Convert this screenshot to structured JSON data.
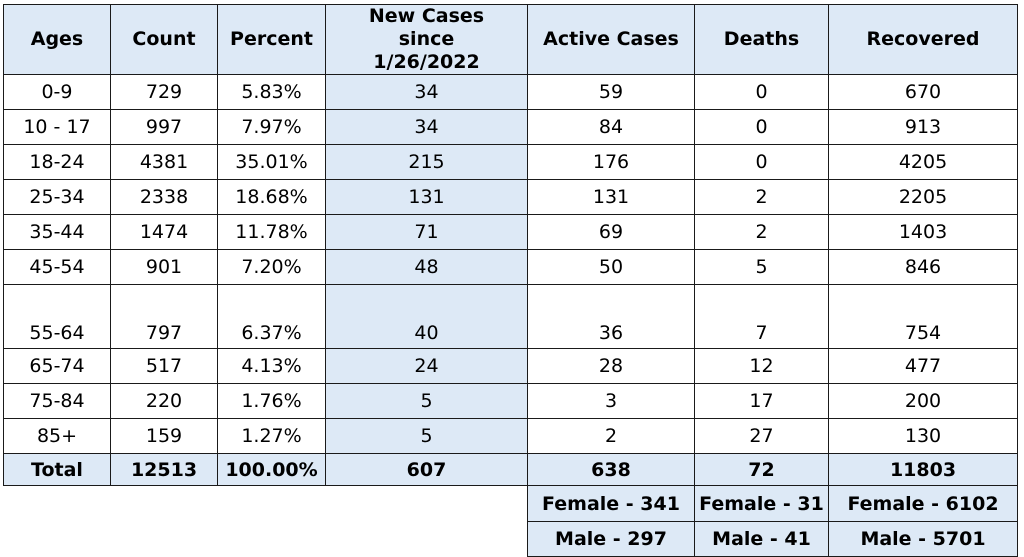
{
  "headers": [
    "Ages",
    "Count",
    "Percent",
    "New Cases since 1/26/2022",
    "Active Cases",
    "Deaths",
    "Recovered"
  ],
  "rows": [
    {
      "ages": "0-9",
      "count": "729",
      "percent": "5.83%",
      "new_cases": "34",
      "active": "59",
      "deaths": "0",
      "recovered": "670"
    },
    {
      "ages": "10 - 17",
      "count": "997",
      "percent": "7.97%",
      "new_cases": "34",
      "active": "84",
      "deaths": "0",
      "recovered": "913"
    },
    {
      "ages": "18-24",
      "count": "4381",
      "percent": "35.01%",
      "new_cases": "215",
      "active": "176",
      "deaths": "0",
      "recovered": "4205"
    },
    {
      "ages": "25-34",
      "count": "2338",
      "percent": "18.68%",
      "new_cases": "131",
      "active": "131",
      "deaths": "2",
      "recovered": "2205"
    },
    {
      "ages": "35-44",
      "count": "1474",
      "percent": "11.78%",
      "new_cases": "71",
      "active": "69",
      "deaths": "2",
      "recovered": "1403"
    },
    {
      "ages": "45-54",
      "count": "901",
      "percent": "7.20%",
      "new_cases": "48",
      "active": "50",
      "deaths": "5",
      "recovered": "846"
    },
    {
      "ages": "55-64",
      "count": "797",
      "percent": "6.37%",
      "new_cases": "40",
      "active": "36",
      "deaths": "7",
      "recovered": "754"
    },
    {
      "ages": "65-74",
      "count": "517",
      "percent": "4.13%",
      "new_cases": "24",
      "active": "28",
      "deaths": "12",
      "recovered": "477"
    },
    {
      "ages": "75-84",
      "count": "220",
      "percent": "1.76%",
      "new_cases": "5",
      "active": "3",
      "deaths": "17",
      "recovered": "200"
    },
    {
      "ages": "85+",
      "count": "159",
      "percent": "1.27%",
      "new_cases": "5",
      "active": "2",
      "deaths": "27",
      "recovered": "130"
    }
  ],
  "total": {
    "ages": "Total",
    "count": "12513",
    "percent": "100.00%",
    "new_cases": "607",
    "active": "638",
    "deaths": "72",
    "recovered": "11803"
  },
  "female": {
    "active": "Female - 341",
    "deaths": "Female - 31",
    "recovered": "Female - 6102"
  },
  "male": {
    "active": "Male - 297",
    "deaths": "Male - 41",
    "recovered": "Male - 5701"
  },
  "colors": {
    "header_fill": "#dde9f6",
    "border": "#1a1a1a"
  }
}
